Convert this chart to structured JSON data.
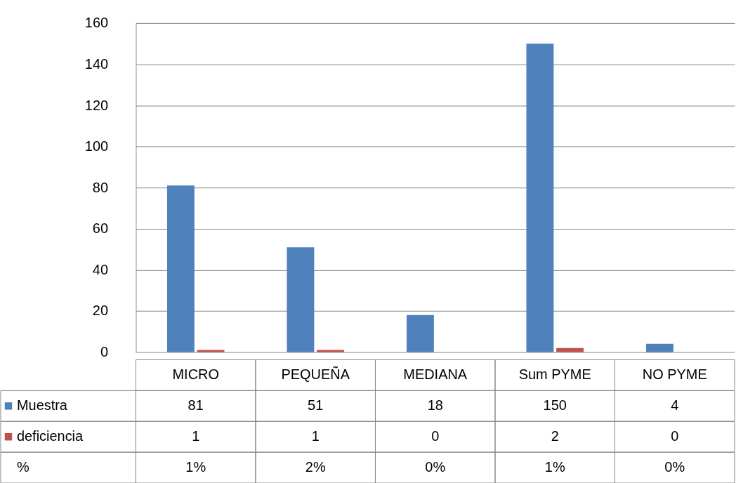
{
  "chart_data": {
    "type": "bar",
    "categories": [
      "MICRO",
      "PEQUEÑA",
      "MEDIANA",
      "Sum PYME",
      "NO PYME"
    ],
    "series": [
      {
        "name": "Muestra",
        "color": "#4f81bd",
        "values": [
          81,
          51,
          18,
          150,
          4
        ]
      },
      {
        "name": "deficiencia",
        "color": "#c0504d",
        "values": [
          1,
          1,
          0,
          2,
          0
        ]
      }
    ],
    "ylim": [
      0,
      160
    ],
    "yticks": [
      0,
      20,
      40,
      60,
      80,
      100,
      120,
      140,
      160
    ],
    "grid": "y",
    "data_labels": true,
    "legend": "bottom left",
    "annotations": [
      "%",
      "1%",
      "2%",
      "0%",
      "1%",
      "0%"
    ]
  }
}
